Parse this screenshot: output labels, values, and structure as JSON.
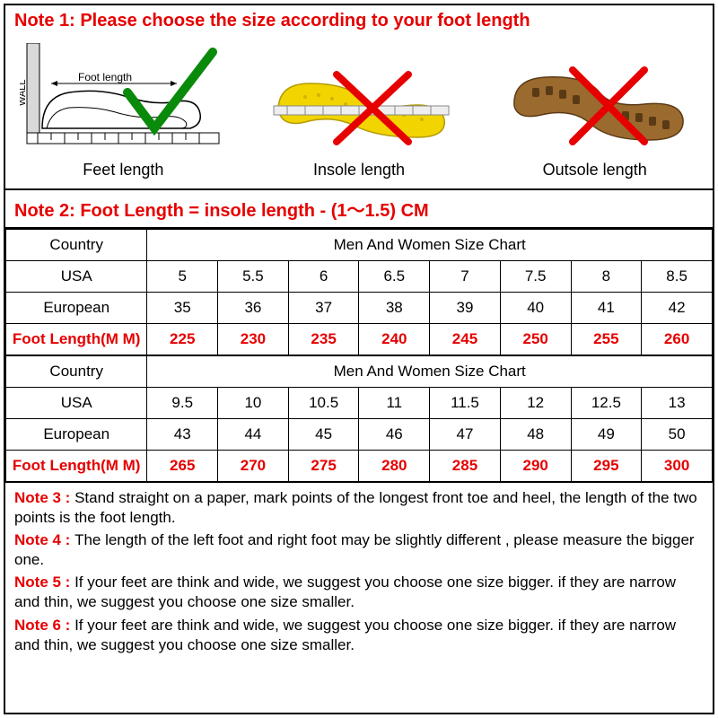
{
  "note1": "Note 1: Please choose the size according to your foot length",
  "note2": "Note 2: Foot Length = insole length  -  (1～1.5) CM",
  "diagrams": {
    "feet": {
      "label": "Feet length",
      "wall_text": "WALL",
      "foot_text": "Foot length"
    },
    "insole": {
      "label": "Insole length"
    },
    "outsole": {
      "label": "Outsole length"
    }
  },
  "tables": [
    {
      "country_label": "Country",
      "chart_title": "Men And Women Size Chart",
      "rows": [
        {
          "label": "USA",
          "cells": [
            "5",
            "5.5",
            "6",
            "6.5",
            "7",
            "7.5",
            "8",
            "8.5"
          ],
          "red": false
        },
        {
          "label": "European",
          "cells": [
            "35",
            "36",
            "37",
            "38",
            "39",
            "40",
            "41",
            "42"
          ],
          "red": false
        },
        {
          "label": "Foot Length(M M)",
          "cells": [
            "225",
            "230",
            "235",
            "240",
            "245",
            "250",
            "255",
            "260"
          ],
          "red": true
        }
      ]
    },
    {
      "country_label": "Country",
      "chart_title": "Men And Women Size Chart",
      "rows": [
        {
          "label": "USA",
          "cells": [
            "9.5",
            "10",
            "10.5",
            "11",
            "11.5",
            "12",
            "12.5",
            "13"
          ],
          "red": false
        },
        {
          "label": "European",
          "cells": [
            "43",
            "44",
            "45",
            "46",
            "47",
            "48",
            "49",
            "50"
          ],
          "red": false
        },
        {
          "label": "Foot Length(M M)",
          "cells": [
            "265",
            "270",
            "275",
            "280",
            "285",
            "290",
            "295",
            "300"
          ],
          "red": true
        }
      ]
    }
  ],
  "notes": [
    {
      "label": "Note 3 : ",
      "text": "Stand straight on a paper, mark points of the longest front toe and heel, the length of the two points is the foot length."
    },
    {
      "label": "Note 4 : ",
      "text": "The length of the left foot and right foot may be slightly different , please measure the bigger one."
    },
    {
      "label": "Note 5 : ",
      "text": "If your feet are think and wide, we suggest you choose one size bigger. if they are narrow and thin, we suggest you choose one size smaller."
    },
    {
      "label": "Note 6 : ",
      "text": "If your feet are think and wide, we suggest you choose one size bigger. if they are narrow and thin, we suggest you choose one size smaller."
    }
  ],
  "colors": {
    "red": "#e60000",
    "green": "#0a8a0a",
    "black": "#000000",
    "insole_fill": "#f2d400",
    "outsole_fill": "#9b6a2f",
    "outsole_lug": "#5a3a15"
  }
}
